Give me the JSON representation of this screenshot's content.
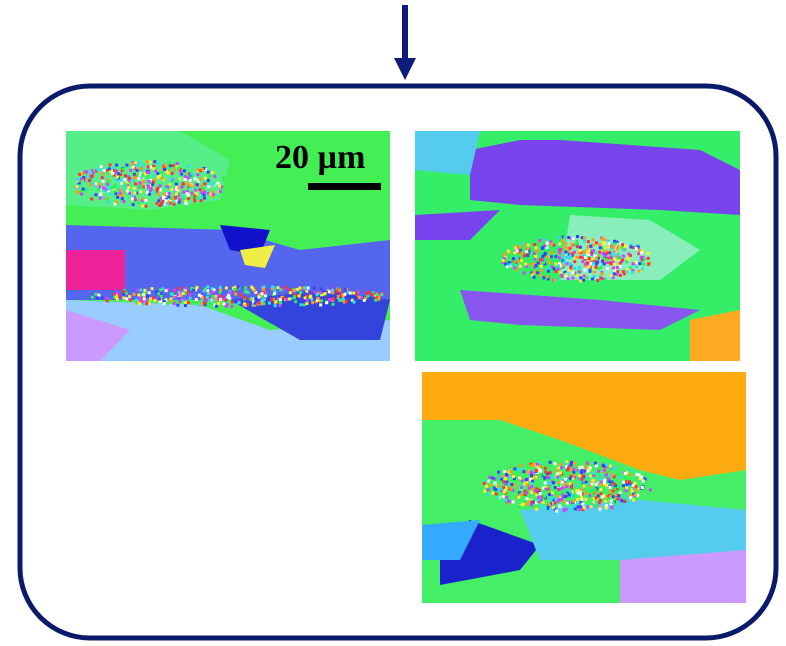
{
  "scale_bar": {
    "label": "20 µm"
  }
}
